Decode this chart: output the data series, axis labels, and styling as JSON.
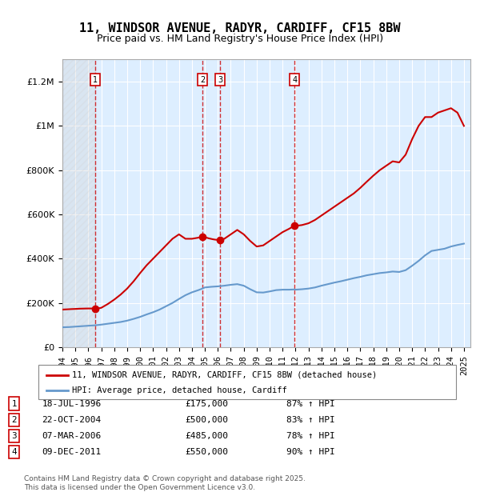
{
  "title": "11, WINDSOR AVENUE, RADYR, CARDIFF, CF15 8BW",
  "subtitle": "Price paid vs. HM Land Registry's House Price Index (HPI)",
  "legend_label_red": "11, WINDSOR AVENUE, RADYR, CARDIFF, CF15 8BW (detached house)",
  "legend_label_blue": "HPI: Average price, detached house, Cardiff",
  "footer": "Contains HM Land Registry data © Crown copyright and database right 2025.\nThis data is licensed under the Open Government Licence v3.0.",
  "transactions": [
    {
      "num": 1,
      "date": "18-JUL-1996",
      "price": 175000,
      "hpi_pct": "87% ↑ HPI",
      "year": 1996.54
    },
    {
      "num": 2,
      "date": "22-OCT-2004",
      "price": 500000,
      "hpi_pct": "83% ↑ HPI",
      "year": 2004.81
    },
    {
      "num": 3,
      "date": "07-MAR-2006",
      "price": 485000,
      "hpi_pct": "78% ↑ HPI",
      "year": 2006.18
    },
    {
      "num": 4,
      "date": "09-DEC-2011",
      "price": 550000,
      "hpi_pct": "90% ↑ HPI",
      "year": 2011.94
    }
  ],
  "ylim": [
    0,
    1300000
  ],
  "xlim_start": 1994.0,
  "xlim_end": 2025.5,
  "plot_bg": "#ddeeff",
  "hatch_end_year": 1996.54,
  "red_color": "#cc0000",
  "blue_color": "#6699cc",
  "hpi_line": {
    "years": [
      1994.0,
      1994.5,
      1995.0,
      1995.5,
      1996.0,
      1996.54,
      1997.0,
      1997.5,
      1998.0,
      1998.5,
      1999.0,
      1999.5,
      2000.0,
      2000.5,
      2001.0,
      2001.5,
      2002.0,
      2002.5,
      2003.0,
      2003.5,
      2004.0,
      2004.5,
      2004.81,
      2005.0,
      2005.5,
      2006.0,
      2006.18,
      2006.5,
      2007.0,
      2007.5,
      2008.0,
      2008.5,
      2009.0,
      2009.5,
      2010.0,
      2010.5,
      2011.0,
      2011.5,
      2011.94,
      2012.0,
      2012.5,
      2013.0,
      2013.5,
      2014.0,
      2014.5,
      2015.0,
      2015.5,
      2016.0,
      2016.5,
      2017.0,
      2017.5,
      2018.0,
      2018.5,
      2019.0,
      2019.5,
      2020.0,
      2020.5,
      2021.0,
      2021.5,
      2022.0,
      2022.5,
      2023.0,
      2023.5,
      2024.0,
      2024.5,
      2025.0
    ],
    "values": [
      90000,
      91000,
      93000,
      95000,
      97000,
      99000,
      102000,
      106000,
      110000,
      114000,
      120000,
      128000,
      137000,
      148000,
      158000,
      170000,
      185000,
      200000,
      218000,
      235000,
      248000,
      258000,
      265000,
      270000,
      273000,
      275000,
      276000,
      278000,
      282000,
      285000,
      278000,
      262000,
      248000,
      247000,
      252000,
      258000,
      260000,
      260000,
      261000,
      260000,
      262000,
      265000,
      270000,
      278000,
      285000,
      292000,
      298000,
      305000,
      312000,
      318000,
      325000,
      330000,
      335000,
      338000,
      342000,
      340000,
      348000,
      368000,
      390000,
      415000,
      435000,
      440000,
      445000,
      455000,
      462000,
      468000
    ]
  },
  "red_line": {
    "years": [
      1994.0,
      1994.3,
      1994.6,
      1995.0,
      1995.3,
      1995.6,
      1996.0,
      1996.3,
      1996.54,
      1996.8,
      1997.0,
      1997.5,
      1998.0,
      1998.5,
      1999.0,
      1999.5,
      2000.0,
      2000.5,
      2001.0,
      2001.5,
      2002.0,
      2002.5,
      2003.0,
      2003.5,
      2004.0,
      2004.5,
      2004.81,
      2005.0,
      2005.3,
      2005.6,
      2005.8,
      2006.0,
      2006.18,
      2006.5,
      2007.0,
      2007.5,
      2008.0,
      2008.5,
      2009.0,
      2009.5,
      2010.0,
      2010.5,
      2011.0,
      2011.5,
      2011.94,
      2012.0,
      2012.5,
      2013.0,
      2013.5,
      2014.0,
      2014.5,
      2015.0,
      2015.5,
      2016.0,
      2016.5,
      2017.0,
      2017.5,
      2018.0,
      2018.5,
      2019.0,
      2019.5,
      2020.0,
      2020.5,
      2021.0,
      2021.5,
      2022.0,
      2022.5,
      2023.0,
      2023.5,
      2024.0,
      2024.5,
      2025.0
    ],
    "values": [
      170000,
      171000,
      172000,
      173000,
      174000,
      174500,
      175000,
      175000,
      175000,
      176000,
      178000,
      195000,
      215000,
      238000,
      265000,
      298000,
      335000,
      370000,
      400000,
      430000,
      460000,
      490000,
      510000,
      490000,
      490000,
      495000,
      500000,
      497000,
      492000,
      488000,
      486000,
      485000,
      485000,
      490000,
      510000,
      530000,
      510000,
      480000,
      455000,
      460000,
      480000,
      500000,
      520000,
      535000,
      550000,
      548000,
      552000,
      560000,
      575000,
      595000,
      615000,
      635000,
      655000,
      675000,
      695000,
      720000,
      748000,
      775000,
      800000,
      820000,
      840000,
      835000,
      870000,
      940000,
      1000000,
      1040000,
      1040000,
      1060000,
      1070000,
      1080000,
      1060000,
      1000000
    ]
  }
}
